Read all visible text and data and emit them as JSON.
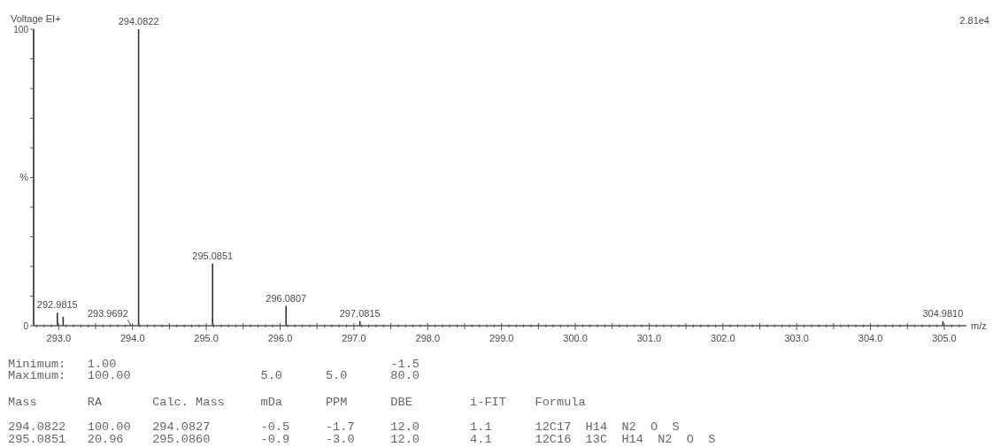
{
  "chart_data": [
    {
      "type": "bar",
      "title": "Voltage EI+",
      "xlabel": "m/z",
      "ylabel": "%",
      "color": "#333333",
      "x": [
        292.9815,
        293.06,
        293.9692,
        294.0822,
        295.0851,
        296.0807,
        297.0815,
        304.981
      ],
      "values": [
        4.4,
        3,
        0.5,
        100,
        21,
        6.7,
        1.5,
        1.5
      ],
      "xlim": [
        292.66,
        305.3
      ],
      "ylim": [
        0,
        100
      ],
      "xticks": [
        {
          "value": 292.7,
          "label": null
        },
        {
          "value": 292.8,
          "label": null
        },
        {
          "value": 292.9,
          "label": null
        },
        {
          "value": 293,
          "label": "293.0"
        },
        {
          "value": 293.1,
          "label": null
        },
        {
          "value": 293.2,
          "label": null
        },
        {
          "value": 293.3,
          "label": null
        },
        {
          "value": 293.4,
          "label": null
        },
        {
          "value": 293.5,
          "label": null
        },
        {
          "value": 293.6,
          "label": null
        },
        {
          "value": 293.7,
          "label": null
        },
        {
          "value": 293.8,
          "label": null
        },
        {
          "value": 293.9,
          "label": null
        },
        {
          "value": 294,
          "label": "294.0"
        },
        {
          "value": 294.1,
          "label": null
        },
        {
          "value": 294.2,
          "label": null
        },
        {
          "value": 294.3,
          "label": null
        },
        {
          "value": 294.4,
          "label": null
        },
        {
          "value": 294.5,
          "label": null
        },
        {
          "value": 294.6,
          "label": null
        },
        {
          "value": 294.7,
          "label": null
        },
        {
          "value": 294.8,
          "label": null
        },
        {
          "value": 294.9,
          "label": null
        },
        {
          "value": 295,
          "label": "295.0"
        },
        {
          "value": 295.1,
          "label": null
        },
        {
          "value": 295.2,
          "label": null
        },
        {
          "value": 295.3,
          "label": null
        },
        {
          "value": 295.4,
          "label": null
        },
        {
          "value": 295.5,
          "label": null
        },
        {
          "value": 295.6,
          "label": null
        },
        {
          "value": 295.7,
          "label": null
        },
        {
          "value": 295.8,
          "label": null
        },
        {
          "value": 295.9,
          "label": null
        },
        {
          "value": 296,
          "label": "296.0"
        },
        {
          "value": 296.1,
          "label": null
        },
        {
          "value": 296.2,
          "label": null
        },
        {
          "value": 296.3,
          "label": null
        },
        {
          "value": 296.4,
          "label": null
        },
        {
          "value": 296.5,
          "label": null
        },
        {
          "value": 296.6,
          "label": null
        },
        {
          "value": 296.7,
          "label": null
        },
        {
          "value": 296.8,
          "label": null
        },
        {
          "value": 296.9,
          "label": null
        },
        {
          "value": 297,
          "label": "297.0"
        },
        {
          "value": 297.1,
          "label": null
        },
        {
          "value": 297.2,
          "label": null
        },
        {
          "value": 297.3,
          "label": null
        },
        {
          "value": 297.4,
          "label": null
        },
        {
          "value": 297.5,
          "label": null
        },
        {
          "value": 297.6,
          "label": null
        },
        {
          "value": 297.7,
          "label": null
        },
        {
          "value": 297.8,
          "label": null
        },
        {
          "value": 297.9,
          "label": null
        },
        {
          "value": 298,
          "label": "298.0"
        },
        {
          "value": 298.1,
          "label": null
        },
        {
          "value": 298.2,
          "label": null
        },
        {
          "value": 298.3,
          "label": null
        },
        {
          "value": 298.4,
          "label": null
        },
        {
          "value": 298.5,
          "label": null
        },
        {
          "value": 298.6,
          "label": null
        },
        {
          "value": 298.7,
          "label": null
        },
        {
          "value": 298.8,
          "label": null
        },
        {
          "value": 298.9,
          "label": null
        },
        {
          "value": 299,
          "label": "299.0"
        },
        {
          "value": 299.1,
          "label": null
        },
        {
          "value": 299.2,
          "label": null
        },
        {
          "value": 299.3,
          "label": null
        },
        {
          "value": 299.4,
          "label": null
        },
        {
          "value": 299.5,
          "label": null
        },
        {
          "value": 299.6,
          "label": null
        },
        {
          "value": 299.7,
          "label": null
        },
        {
          "value": 299.8,
          "label": null
        },
        {
          "value": 299.9,
          "label": null
        },
        {
          "value": 300,
          "label": "300.0"
        },
        {
          "value": 300.1,
          "label": null
        },
        {
          "value": 300.2,
          "label": null
        },
        {
          "value": 300.3,
          "label": null
        },
        {
          "value": 300.4,
          "label": null
        },
        {
          "value": 300.5,
          "label": null
        },
        {
          "value": 300.6,
          "label": null
        },
        {
          "value": 300.7,
          "label": null
        },
        {
          "value": 300.8,
          "label": null
        },
        {
          "value": 300.9,
          "label": null
        },
        {
          "value": 301,
          "label": "301.0"
        },
        {
          "value": 301.1,
          "label": null
        },
        {
          "value": 301.2,
          "label": null
        },
        {
          "value": 301.3,
          "label": null
        },
        {
          "value": 301.4,
          "label": null
        },
        {
          "value": 301.5,
          "label": null
        },
        {
          "value": 301.6,
          "label": null
        },
        {
          "value": 301.7,
          "label": null
        },
        {
          "value": 301.8,
          "label": null
        },
        {
          "value": 301.9,
          "label": null
        },
        {
          "value": 302,
          "label": "302.0"
        },
        {
          "value": 302.1,
          "label": null
        },
        {
          "value": 302.2,
          "label": null
        },
        {
          "value": 302.3,
          "label": null
        },
        {
          "value": 302.4,
          "label": null
        },
        {
          "value": 302.5,
          "label": null
        },
        {
          "value": 302.6,
          "label": null
        },
        {
          "value": 302.7,
          "label": null
        },
        {
          "value": 302.8,
          "label": null
        },
        {
          "value": 302.9,
          "label": null
        },
        {
          "value": 303,
          "label": "303.0"
        },
        {
          "value": 303.1,
          "label": null
        },
        {
          "value": 303.2,
          "label": null
        },
        {
          "value": 303.3,
          "label": null
        },
        {
          "value": 303.4,
          "label": null
        },
        {
          "value": 303.5,
          "label": null
        },
        {
          "value": 303.6,
          "label": null
        },
        {
          "value": 303.7,
          "label": null
        },
        {
          "value": 303.8,
          "label": null
        },
        {
          "value": 303.9,
          "label": null
        },
        {
          "value": 304,
          "label": "304.0"
        },
        {
          "value": 304.1,
          "label": null
        },
        {
          "value": 304.2,
          "label": null
        },
        {
          "value": 304.3,
          "label": null
        },
        {
          "value": 304.4,
          "label": null
        },
        {
          "value": 304.5,
          "label": null
        },
        {
          "value": 304.6,
          "label": null
        },
        {
          "value": 304.7,
          "label": null
        },
        {
          "value": 304.8,
          "label": null
        },
        {
          "value": 304.9,
          "label": null
        },
        {
          "value": 305,
          "label": "305.0"
        },
        {
          "value": 305.1,
          "label": null
        },
        {
          "value": 305.2,
          "label": null
        }
      ],
      "yticks": [
        0,
        {
          "value": 10,
          "label": null
        },
        {
          "value": 20,
          "label": null
        },
        {
          "value": 30,
          "label": null
        },
        {
          "value": 40,
          "label": null
        },
        {
          "value": 50,
          "label": null
        },
        {
          "value": 60,
          "label": null
        },
        {
          "value": 70,
          "label": null
        },
        {
          "value": 80,
          "label": null
        },
        {
          "value": 90,
          "label": null
        },
        100
      ],
      "annotations": [
        "2.81e4",
        {
          "text": "292.9815",
          "x": 292.9815,
          "y": 4.4
        },
        {
          "text": "293.9692",
          "x": 293.9692,
          "y": 0.5
        },
        {
          "text": "294.0822",
          "x": 294.0822,
          "y": 100
        },
        {
          "text": "295.0851",
          "x": 295.0851,
          "y": 21
        },
        {
          "text": "296.0807",
          "x": 296.0807,
          "y": 6.7
        },
        {
          "text": "297.0815",
          "x": 297.0815,
          "y": 1.5
        },
        {
          "text": "304.9810",
          "x": 304.981,
          "y": 1.5
        }
      ]
    },
    {
      "type": "other",
      "annotations": [
        "Minimum:   1.00                                      -1.5",
        "Maximum:   100.00                  5.0      5.0      80.0",
        "Mass       RA       Calc. Mass     mDa      PPM      DBE        i-FIT    Formula",
        "294.0822   100.00   294.0827       -0.5     -1.7     12.0       1.1      12C17  H14  N2  O  S",
        "295.0851   20.96    295.0860       -0.9     -3.0     12.0       4.1      12C16  13C  H14  N2  O  S"
      ]
    }
  ]
}
